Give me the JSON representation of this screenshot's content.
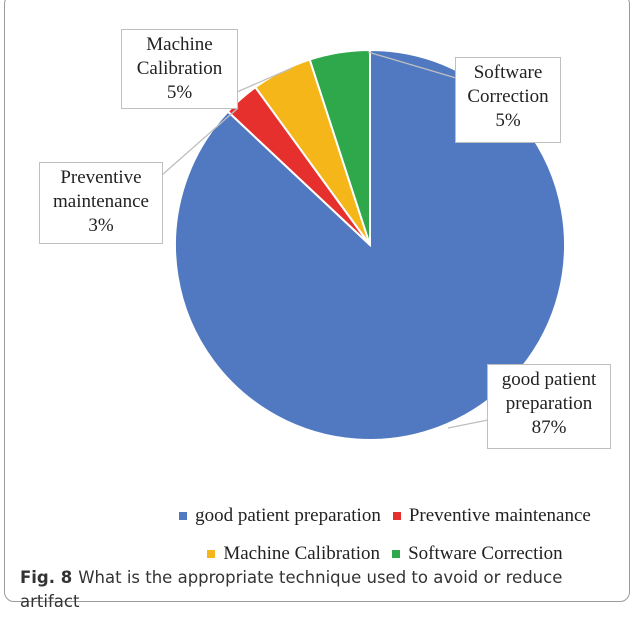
{
  "chart_data": {
    "type": "pie",
    "categories": [
      "good patient preparation",
      "Preventive maintenance",
      "Machine Calibration",
      "Software Correction"
    ],
    "values": [
      87,
      3,
      5,
      5
    ],
    "value_labels": [
      "87%",
      "3%",
      "5%",
      "5%"
    ],
    "colors": [
      "#5079c1",
      "#e6302e",
      "#f5b619",
      "#2ea84b"
    ]
  },
  "caption": {
    "label": "Fig. 8",
    "text": "What is the appropriate technique used to avoid or reduce artifact"
  }
}
